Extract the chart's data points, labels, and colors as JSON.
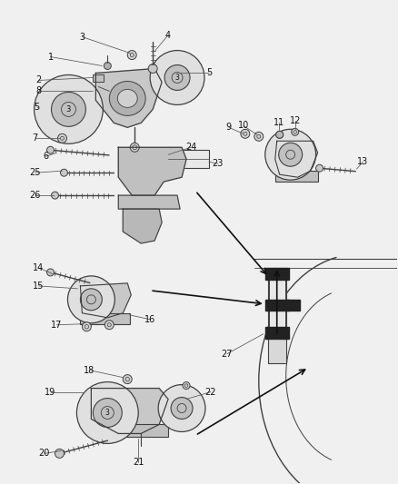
{
  "bg_color": "#f0f0f0",
  "fig_width": 4.38,
  "fig_height": 5.33,
  "dpi": 100,
  "lc": "#404040",
  "dc": "#111111",
  "fc_light": "#d0d0d0",
  "fc_mid": "#b8b8b8",
  "label_fs": 7,
  "label_color": "#111111"
}
